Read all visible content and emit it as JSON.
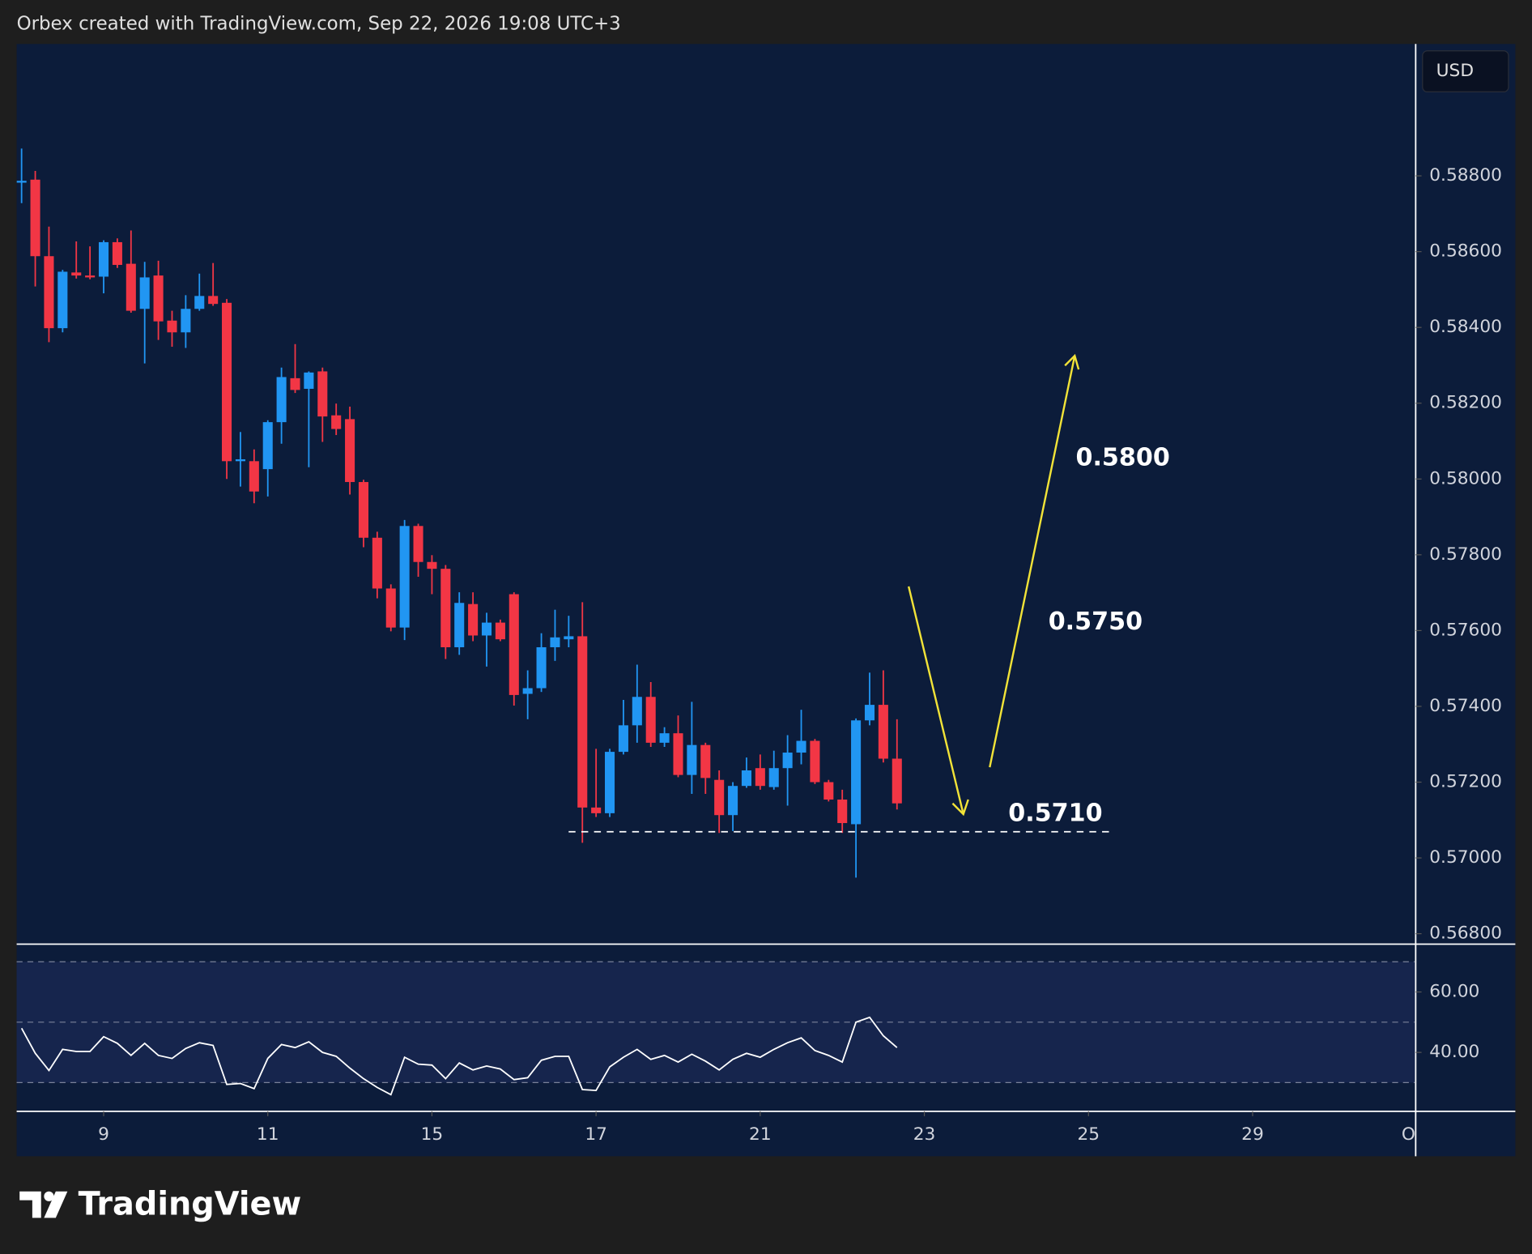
{
  "header": {
    "attribution": "Orbex created with TradingView.com, Sep 22, 2026 19:08 UTC+3",
    "currency": "USD",
    "logo": "TradingView"
  },
  "chart_data": [
    {
      "type": "candlestick",
      "up_color": "#2196f3",
      "down_color": "#f23645",
      "open": [
        0.58782,
        0.5879,
        0.58588,
        0.58398,
        0.58545,
        0.58537,
        0.58534,
        0.58625,
        0.58568,
        0.58449,
        0.58537,
        0.58418,
        0.58387,
        0.58449,
        0.58483,
        0.58465,
        0.58047,
        0.58047,
        0.58026,
        0.5815,
        0.58266,
        0.58238,
        0.58284,
        0.58168,
        0.58158,
        0.57992,
        0.57845,
        0.57711,
        0.57608,
        0.57876,
        0.57781,
        0.57763,
        0.57556,
        0.5767,
        0.57587,
        0.57621,
        0.57696,
        0.57433,
        0.57448,
        0.57556,
        0.57577,
        0.57585,
        0.57133,
        0.57118,
        0.5728,
        0.5735,
        0.57425,
        0.57304,
        0.57329,
        0.57219,
        0.57298,
        0.57206,
        0.57113,
        0.5719,
        0.57237,
        0.57187,
        0.57237,
        0.57278,
        0.57309,
        0.572,
        0.57154,
        0.57089,
        0.57363,
        0.57404,
        0.57262
      ],
      "high": [
        0.58872,
        0.58813,
        0.58666,
        0.58552,
        0.58627,
        0.58614,
        0.5863,
        0.58635,
        0.58656,
        0.58573,
        0.58576,
        0.58444,
        0.58485,
        0.58542,
        0.5857,
        0.58475,
        0.58124,
        0.58078,
        0.58155,
        0.58294,
        0.58356,
        0.58284,
        0.58294,
        0.58199,
        0.58191,
        0.57998,
        0.57861,
        0.57722,
        0.57892,
        0.57882,
        0.57799,
        0.57773,
        0.57701,
        0.57701,
        0.57647,
        0.57629,
        0.57701,
        0.57495,
        0.57593,
        0.57655,
        0.57639,
        0.57675,
        0.57288,
        0.57288,
        0.57417,
        0.5751,
        0.57464,
        0.57345,
        0.57376,
        0.57412,
        0.57304,
        0.57231,
        0.572,
        0.57265,
        0.57273,
        0.57283,
        0.57324,
        0.57391,
        0.57314,
        0.57206,
        0.5718,
        0.57368,
        0.57489,
        0.57495,
        0.57366
      ],
      "low": [
        0.58728,
        0.58508,
        0.58361,
        0.58387,
        0.58529,
        0.58527,
        0.5849,
        0.58557,
        0.58439,
        0.58305,
        0.58367,
        0.58349,
        0.58346,
        0.58444,
        0.58457,
        0.58,
        0.5798,
        0.57936,
        0.57954,
        0.58093,
        0.58227,
        0.58031,
        0.58098,
        0.58116,
        0.57959,
        0.5782,
        0.57685,
        0.57598,
        0.57575,
        0.57742,
        0.57696,
        0.57525,
        0.57536,
        0.57572,
        0.57505,
        0.57572,
        0.57402,
        0.57366,
        0.57438,
        0.5752,
        0.57556,
        0.5704,
        0.57108,
        0.57108,
        0.57273,
        0.57304,
        0.57293,
        0.57293,
        0.57213,
        0.57169,
        0.57169,
        0.57066,
        0.57071,
        0.57185,
        0.5718,
        0.5718,
        0.57138,
        0.57247,
        0.57195,
        0.57149,
        0.57066,
        0.56948,
        0.5735,
        0.57252,
        0.57128
      ],
      "close": [
        0.58787,
        0.58588,
        0.58398,
        0.58547,
        0.58537,
        0.58532,
        0.58625,
        0.58565,
        0.58444,
        0.58532,
        0.58416,
        0.58387,
        0.58449,
        0.58483,
        0.58462,
        0.58047,
        0.58052,
        0.57967,
        0.5815,
        0.58269,
        0.58235,
        0.58281,
        0.58165,
        0.58132,
        0.57992,
        0.57845,
        0.57711,
        0.57608,
        0.57876,
        0.57781,
        0.57763,
        0.57556,
        0.57673,
        0.57587,
        0.57621,
        0.57577,
        0.5743,
        0.57448,
        0.57556,
        0.57582,
        0.57585,
        0.57133,
        0.57118,
        0.5728,
        0.5735,
        0.57425,
        0.57304,
        0.57329,
        0.57219,
        0.57298,
        0.57211,
        0.57113,
        0.5719,
        0.57231,
        0.5719,
        0.57237,
        0.57278,
        0.57309,
        0.572,
        0.57154,
        0.57092,
        0.57363,
        0.57404,
        0.57262,
        0.57144
      ],
      "xlim": [
        -0.36,
        101.85
      ],
      "xticks": [
        {
          "value": 6,
          "label": "9"
        },
        {
          "value": 18,
          "label": "11"
        },
        {
          "value": 30,
          "label": "15"
        },
        {
          "value": 42,
          "label": "17"
        },
        {
          "value": 54,
          "label": "21"
        },
        {
          "value": 66,
          "label": "23"
        },
        {
          "value": 78,
          "label": "25"
        },
        {
          "value": 90,
          "label": "29"
        },
        {
          "value": 102,
          "label": "Oct"
        }
      ],
      "ylim": [
        0.56775,
        0.59148
      ],
      "yticks": [
        {
          "value": 0.588,
          "label": "0.58800"
        },
        {
          "value": 0.586,
          "label": "0.58600"
        },
        {
          "value": 0.584,
          "label": "0.58400"
        },
        {
          "value": 0.582,
          "label": "0.58200"
        },
        {
          "value": 0.58,
          "label": "0.58000"
        },
        {
          "value": 0.578,
          "label": "0.57800"
        },
        {
          "value": 0.576,
          "label": "0.57600"
        },
        {
          "value": 0.574,
          "label": "0.57400"
        },
        {
          "value": 0.572,
          "label": "0.57200"
        },
        {
          "value": 0.57,
          "label": "0.57000"
        },
        {
          "value": 0.568,
          "label": "0.56800"
        }
      ],
      "annotations": [
        "0.5800",
        "0.5750",
        "0.5710"
      ]
    },
    {
      "type": "line",
      "color": "#ffffff",
      "values": [
        48,
        39.7,
        34,
        41,
        40.3,
        40.3,
        45.2,
        43,
        39,
        43,
        39,
        38,
        41.3,
        43.2,
        42.3,
        29.4,
        29.7,
        28,
        38,
        42.6,
        41.6,
        43.5,
        40,
        38.7,
        34.8,
        31.3,
        28.4,
        26,
        38.4,
        36.1,
        35.8,
        31.3,
        36.5,
        34.2,
        35.5,
        34.5,
        31,
        31.6,
        37.4,
        38.7,
        38.7,
        27.7,
        27.4,
        35.2,
        38.4,
        41,
        37.7,
        39,
        36.8,
        39.4,
        37.1,
        34.2,
        37.7,
        39.7,
        38.4,
        41,
        43.2,
        44.8,
        40.6,
        39,
        36.8,
        50,
        51.6,
        45.5,
        41.6
      ],
      "ylim": [
        20.5,
        75.5
      ],
      "yticks": [
        {
          "value": 60,
          "label": "60.00"
        },
        {
          "value": 40,
          "label": "40.00"
        }
      ],
      "levels": [
        70,
        50,
        30
      ]
    }
  ]
}
